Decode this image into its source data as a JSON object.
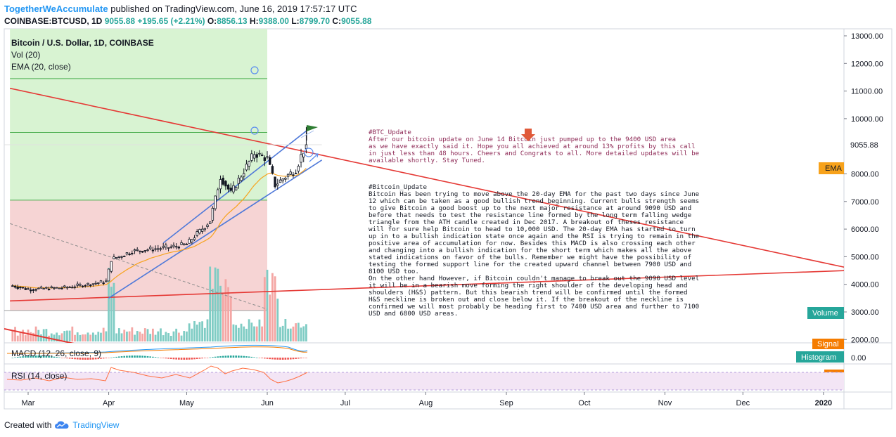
{
  "header": {
    "author": "TogetherWeAccumulate",
    "published": "published on TradingView.com, June 16, 2019 17:57:17 UTC",
    "symbol": "COINBASE:BTCUSD, 1D",
    "last": "9055.88",
    "change": "+195.65 (+2.21%)",
    "o_label": "O:",
    "o": "8856.13",
    "h_label": "H:",
    "h": "9388.00",
    "l_label": "L:",
    "l": "8799.70",
    "c_label": "C:",
    "c": "9055.88"
  },
  "legend": {
    "title": "Bitcoin / U.S. Dollar, 1D, COINBASE",
    "vol": "Vol (20)",
    "ema": "EMA (20, close)",
    "macd": "MACD (12, 26, close, 9)",
    "rsi": "RSI (14, close)"
  },
  "badges": {
    "price": "9055.88",
    "ema": "EMA",
    "volume": "Volume",
    "signal": "Signal",
    "histogram": "Histogram",
    "macd_zero": "0.00",
    "rsi": "RSI"
  },
  "annotation1": {
    "lines": [
      "#BTC_Update",
      "After our bitcoin update on June 14      Bitcoin just pumped up to the 9400 USD area",
      "as we have exactly said it. Hope you all achieved at around 13% profits by this call",
      "in just less than 48 hours. Cheers and Congrats to all. More detailed updates will be",
      "available shortly. Stay Tuned."
    ]
  },
  "annotation2": {
    "lines": [
      "#Bitcoin_Update",
      "Bitcoin Has been trying to move above the 20-day EMA for the past two days since June",
      "12 which can be taken as a good bullish trend beginning. Current bulls strength seems",
      "to give Bitcoin a good boost up to the next major resistance at around 9090 USD and",
      "before that needs to test the resistance line formed by the long term falling wedge",
      "triangle from the ATH candle created in Dec 2017. A breakout of theses resistance",
      "will for sure help Bitcoin to head to 10,000 USD. The 20-day EMA has started to turn",
      "up in to a bullish indication state once again and the RSI is trying to remain in the",
      "positive area of accumulation for now. Besides this MACD is also crossing each other",
      "and changing into a bullish indication for the short term which makes all the above",
      "stated indications on favor of the bulls. Remember we might have the possibility of",
      "testing the formed support line for the created upward channel between 7900 USD and",
      "8100 USD too.",
      "On the other hand However, if Bitcoin couldn't manage to break out the 9090 USD level",
      "it will be in a bearish move forming the right shoulder of the developing head and",
      "shoulders (H&S) pattern. But this bearish trend will be confirmed until the formed",
      "H&S neckline is broken out and close below it. If the breakout of the neckline is",
      "confirmed we will most probably be heading first to 7400 USD area and further to 7100",
      "USD and 6800 USD areas."
    ]
  },
  "footer": {
    "created": "Created with",
    "brand": "TradingView"
  },
  "colors": {
    "up": "#26a69a",
    "down": "#ef5350",
    "candle": "#131722",
    "ema": "#f7a21b",
    "channel": "#4f79d9",
    "resistance": "#e53935",
    "annotation": "#8e2a56",
    "green_zone": "#d8f3d2",
    "red_zone": "#f6d4d4"
  },
  "chart_data": {
    "type": "candlestick",
    "title": "Bitcoin / U.S. Dollar, 1D, COINBASE",
    "x_axis": {
      "tick_labels": [
        "Mar",
        "Apr",
        "May",
        "Jun",
        "Jul",
        "Aug",
        "Sep",
        "Oct",
        "Nov",
        "Dec",
        "2020"
      ],
      "tick_dates": [
        "2019-03-01",
        "2019-04-01",
        "2019-05-01",
        "2019-06-01",
        "2019-07-01",
        "2019-08-01",
        "2019-09-01",
        "2019-10-01",
        "2019-11-01",
        "2019-12-01",
        "2020-01-01"
      ],
      "range": [
        "2019-02-22",
        "2020-01-10"
      ]
    },
    "y_axis": {
      "tick_labels": [
        "13000.00",
        "12000.00",
        "11000.00",
        "10000.00",
        "8000.00",
        "7000.00",
        "6000.00",
        "5000.00",
        "4000.00",
        "3000.00",
        "2000.00"
      ],
      "tick_values": [
        13000,
        12000,
        11000,
        10000,
        8000,
        7000,
        6000,
        5000,
        4000,
        3000,
        2000
      ],
      "range": [
        1900,
        13400
      ],
      "scale": "linear"
    },
    "last_price": 9055.88,
    "anchors": [
      {
        "date": "2019-02-23",
        "close": 3950
      },
      {
        "date": "2019-03-01",
        "close": 3820
      },
      {
        "date": "2019-03-15",
        "close": 3880
      },
      {
        "date": "2019-03-31",
        "close": 4100
      },
      {
        "date": "2019-04-02",
        "close": 4900
      },
      {
        "date": "2019-04-10",
        "close": 5200
      },
      {
        "date": "2019-04-25",
        "close": 5350
      },
      {
        "date": "2019-05-01",
        "close": 5450
      },
      {
        "date": "2019-05-10",
        "close": 6300
      },
      {
        "date": "2019-05-14",
        "close": 7900
      },
      {
        "date": "2019-05-18",
        "close": 7300
      },
      {
        "date": "2019-05-22",
        "close": 7950
      },
      {
        "date": "2019-05-27",
        "close": 8750
      },
      {
        "date": "2019-06-01",
        "close": 8550
      },
      {
        "date": "2019-06-04",
        "close": 7600
      },
      {
        "date": "2019-06-08",
        "close": 7900
      },
      {
        "date": "2019-06-12",
        "close": 8150
      },
      {
        "date": "2019-06-14",
        "close": 8650
      },
      {
        "date": "2019-06-16",
        "close": 9055.88
      }
    ],
    "volume_peaks_dates": [
      "2019-04-02",
      "2019-05-11",
      "2019-05-14",
      "2019-05-17",
      "2019-06-01",
      "2019-06-04"
    ],
    "zones": [
      {
        "type": "green",
        "from": 7050,
        "to": 13400,
        "date_from": "2019-02-22",
        "date_to": "2019-06-01"
      },
      {
        "type": "red",
        "from": 3050,
        "to": 7050,
        "date_from": "2019-02-22",
        "date_to": "2019-06-01"
      }
    ],
    "horizontal_levels": [
      11450,
      9500,
      7050
    ],
    "lines": [
      {
        "name": "resistance",
        "from": {
          "date": "2019-02-22",
          "value": 11100
        },
        "to": {
          "date": "2020-01-10",
          "value": 4600
        }
      },
      {
        "name": "support",
        "from": {
          "date": "2019-02-22",
          "value": 3400
        },
        "to": {
          "date": "2020-01-10",
          "value": 4500
        }
      },
      {
        "name": "channel-upper",
        "from": {
          "date": "2019-04-22",
          "value": 5500
        },
        "to": {
          "date": "2019-06-18",
          "value": 9700
        }
      },
      {
        "name": "channel-lower",
        "from": {
          "date": "2019-04-01",
          "value": 3500
        },
        "to": {
          "date": "2019-06-22",
          "value": 8500
        }
      },
      {
        "name": "dashed-trend",
        "from": {
          "date": "2019-02-22",
          "value": 6200
        },
        "to": {
          "date": "2019-06-01",
          "value": 3100
        }
      }
    ]
  }
}
